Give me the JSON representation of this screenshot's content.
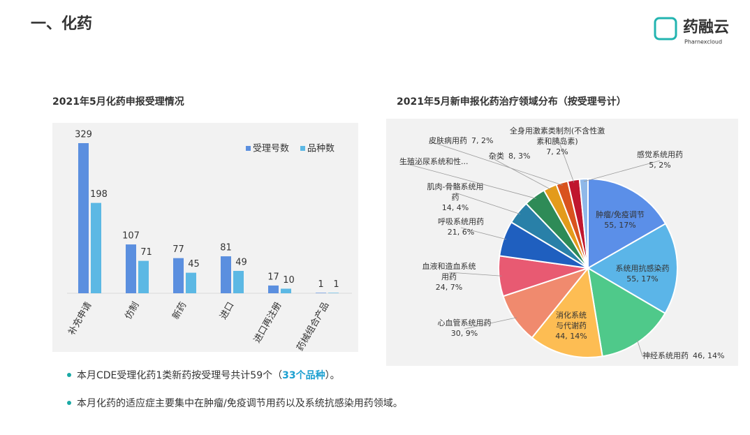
{
  "header": {
    "title": "一、化药",
    "logo": "药融云",
    "logo_sub": "Pharnexcloud"
  },
  "chart_data": [
    {
      "type": "bar",
      "title": "2021年5月化药申报受理情况",
      "categories": [
        "补充申请",
        "仿制",
        "新药",
        "进口",
        "进口再注册",
        "药械组合产品"
      ],
      "series": [
        {
          "name": "受理号数",
          "color": "#5b8fdf",
          "values": [
            329,
            107,
            77,
            81,
            17,
            1
          ]
        },
        {
          "name": "品种数",
          "color": "#5cb8e4",
          "values": [
            198,
            71,
            45,
            49,
            10,
            1
          ]
        }
      ],
      "legend": "top-right"
    },
    {
      "type": "pie",
      "title": "2021年5月新申报化药治疗领域分布（按受理号计）",
      "categories": [
        "肿瘤/免疫调节",
        "系统用抗感染药",
        "神经系统用药",
        "消化系统与代谢药",
        "心血管系统用药",
        "血液和造血系统用药",
        "呼吸系统用药",
        "肌肉-骨骼系统用药",
        "生殖泌尿系统和性...",
        "杂类",
        "皮肤病用药",
        "全身用激素类制剂(不含性激素和胰岛素)",
        "感觉系统用药"
      ],
      "values": [
        55,
        55,
        46,
        44,
        30,
        24,
        21,
        14,
        13,
        8,
        7,
        7,
        5
      ],
      "value_labels": [
        "55, 17%",
        "55, 17%",
        "46, 14%",
        "44, 14%",
        "30, 9%",
        "24, 7%",
        "21, 6%",
        "14, 4%",
        null,
        "8, 3%",
        "7, 2%",
        "7, 2%",
        "5, 2%"
      ],
      "colors": [
        "#5b8fe8",
        "#5bb5e8",
        "#4fc98a",
        "#fdbd53",
        "#f08a6e",
        "#e85a72",
        "#1f5fbf",
        "#2980a8",
        "#2e8b57",
        "#e39b1b",
        "#d9531e",
        "#c0162e",
        "#8fb8e8"
      ]
    }
  ],
  "bullets": [
    {
      "parts": [
        "本月CDE受理化药1类新药按受理号共计59个（",
        "33个品种",
        "）。"
      ]
    },
    {
      "parts": [
        "本月化药的适应症主要集中在肿瘤/免疫调节用药以及系统抗感染用药领域。"
      ]
    }
  ]
}
